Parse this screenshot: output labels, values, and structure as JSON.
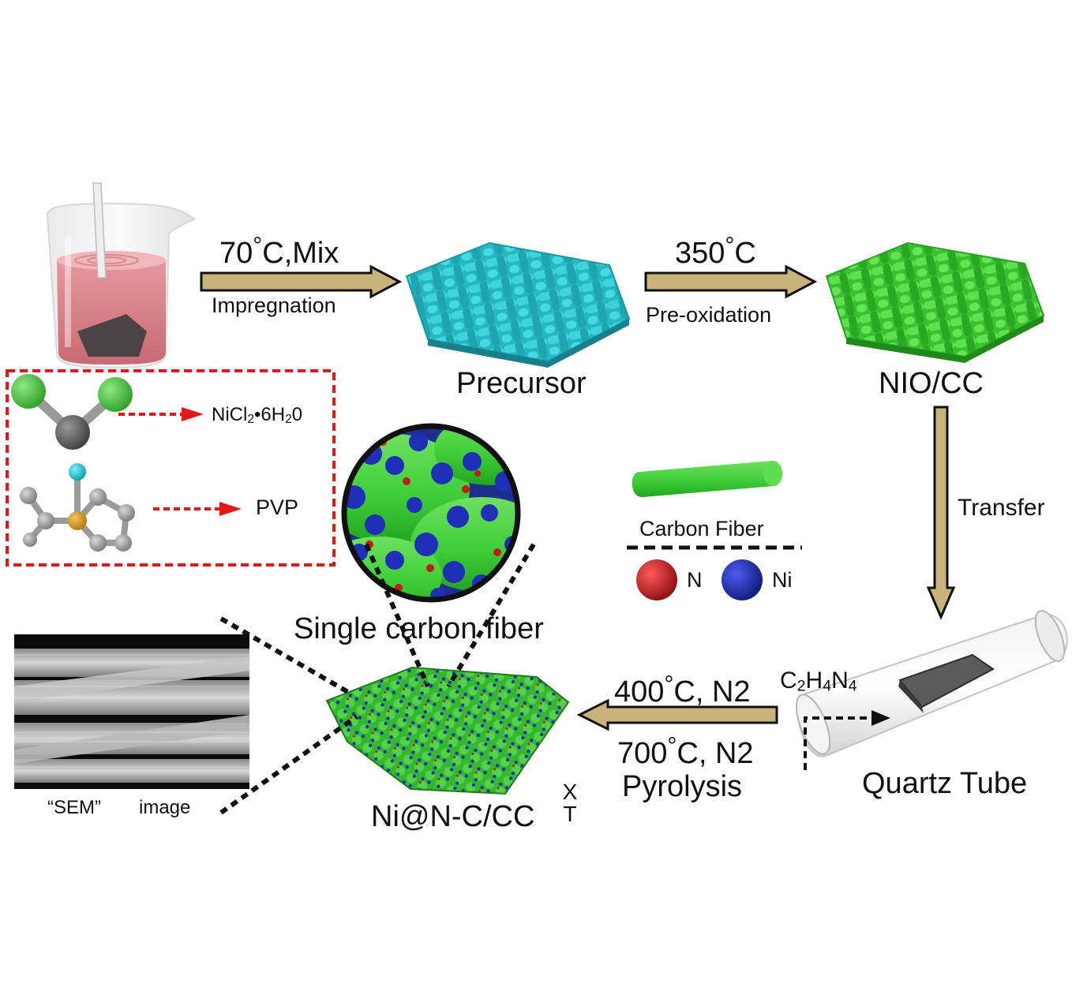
{
  "steps": {
    "step1_top": "70",
    "step1_top_suffix": "C,Mix",
    "step1_bottom": "Impregnation",
    "step2_top": "350",
    "step2_bottom": "Pre-oxidation",
    "transfer": "Transfer",
    "pyro_top": "400",
    "pyro_top_suffix": "C, N2",
    "pyro_mid": "700",
    "pyro_mid_suffix": "C, N2",
    "pyro_bottom": "Pyrolysis",
    "degree_glyph": "°",
    "degree_c": "C"
  },
  "products": {
    "precursor": "Precursor",
    "nio": "NIO/CC",
    "final": "Ni@N-C/CC",
    "final_sub_top": "X",
    "final_sub_bottom": "T",
    "quartz": "Quartz Tube",
    "single_fiber": "Single carbon fiber",
    "sem_a": "“SEM”",
    "sem_b": "image"
  },
  "reagents": {
    "nicl2_a": "NiCl",
    "nicl2_b": "2",
    "nicl2_c": "•6H",
    "nicl2_d": "2",
    "nicl2_e": "0",
    "pvp": "PVP",
    "c2h4n4_a": "C",
    "c2h4n4_b": "2",
    "c2h4n4_c": "H",
    "c2h4n4_d": "4",
    "c2h4n4_e": "N",
    "c2h4n4_f": "4"
  },
  "legend": {
    "carbon_fiber": "Carbon Fiber",
    "n": "N",
    "ni": "Ni"
  },
  "colors": {
    "arrow_fill": "#c8b47a",
    "arrow_edge": "#111111",
    "precursor_cloth": "#2fc6d0",
    "nio_cloth": "#4cd43f",
    "dashed_box": "#e01818",
    "n_dot": "#c41a1a",
    "ni_dot": "#1f2fb8",
    "fiber_green": "#3fcf3a"
  }
}
